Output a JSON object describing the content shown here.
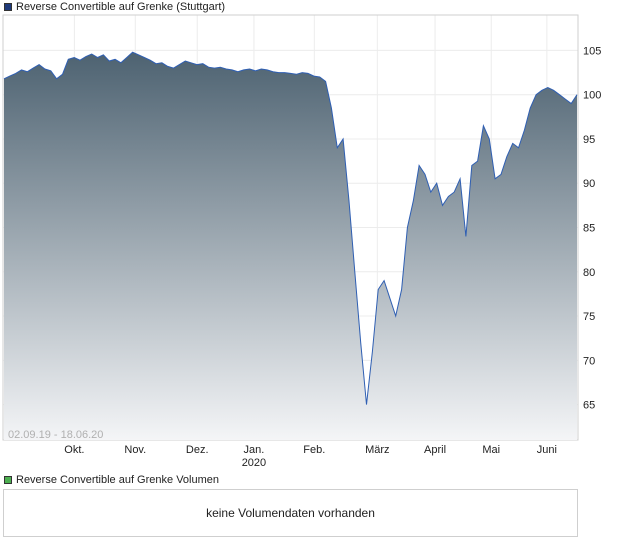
{
  "price_legend": {
    "label": "Reverse Convertible auf Grenke  (Stuttgart)",
    "swatch_color": "#1f3a7a"
  },
  "volume_legend": {
    "label": "Reverse Convertible auf Grenke  Volumen",
    "swatch_color": "#4caf50"
  },
  "volume_panel": {
    "message": "keine Volumendaten vorhanden"
  },
  "chart_data": {
    "type": "area",
    "title": "Reverse Convertible auf Grenke  (Stuttgart)",
    "date_range_label": "02.09.19 - 18.06.20",
    "x_ticks": [
      {
        "label": "Okt.",
        "sub": "",
        "index": 0.136
      },
      {
        "label": "Nov.",
        "sub": "",
        "index": 0.252
      },
      {
        "label": "Dez.",
        "sub": "",
        "index": 0.37
      },
      {
        "label": "Jan.",
        "sub": "2020",
        "index": 0.478
      },
      {
        "label": "Feb.",
        "sub": "",
        "index": 0.593
      },
      {
        "label": "März",
        "sub": "",
        "index": 0.713
      },
      {
        "label": "April",
        "sub": "",
        "index": 0.823
      },
      {
        "label": "Mai",
        "sub": "",
        "index": 0.93
      },
      {
        "label": "Juni",
        "sub": "",
        "index": 1.036
      }
    ],
    "y_ticks": [
      65,
      70,
      75,
      80,
      85,
      90,
      95,
      100,
      105
    ],
    "ylim": [
      61,
      109
    ],
    "line_color": "#2f5fb3",
    "area_top_color": "#4d6271",
    "area_bottom_color": "#f4f5f7",
    "grid": true,
    "series": [
      {
        "values": [
          101.8,
          102.1,
          102.4,
          102.8,
          102.6,
          103.0,
          103.4,
          102.9,
          102.7,
          101.8,
          102.3,
          104.0,
          104.2,
          103.9,
          104.3,
          104.6,
          104.2,
          104.5,
          103.8,
          104.0,
          103.6,
          104.2,
          104.8,
          104.5,
          104.2,
          103.9,
          103.5,
          103.6,
          103.2,
          103.0,
          103.4,
          103.8,
          103.6,
          103.4,
          103.5,
          103.1,
          103.0,
          103.1,
          102.9,
          102.8,
          102.6,
          102.8,
          102.9,
          102.7,
          102.9,
          102.8,
          102.6,
          102.5,
          102.5,
          102.4,
          102.3,
          102.5,
          102.4,
          102.1,
          102.0,
          101.5,
          98.5,
          94.0,
          95.0,
          88.0,
          80.0,
          72.0,
          65.0,
          71.0,
          78.0,
          79.0,
          77.0,
          75.0,
          78.0,
          85.0,
          88.0,
          92.0,
          91.0,
          89.0,
          90.0,
          87.5,
          88.5,
          89.0,
          90.5,
          84.0,
          92.0,
          92.5,
          96.5,
          95.0,
          90.5,
          91.0,
          93.0,
          94.5,
          94.0,
          96.0,
          98.5,
          100.0,
          100.5,
          100.8,
          100.5,
          100.0,
          99.5,
          99.0,
          100.0
        ]
      }
    ]
  }
}
